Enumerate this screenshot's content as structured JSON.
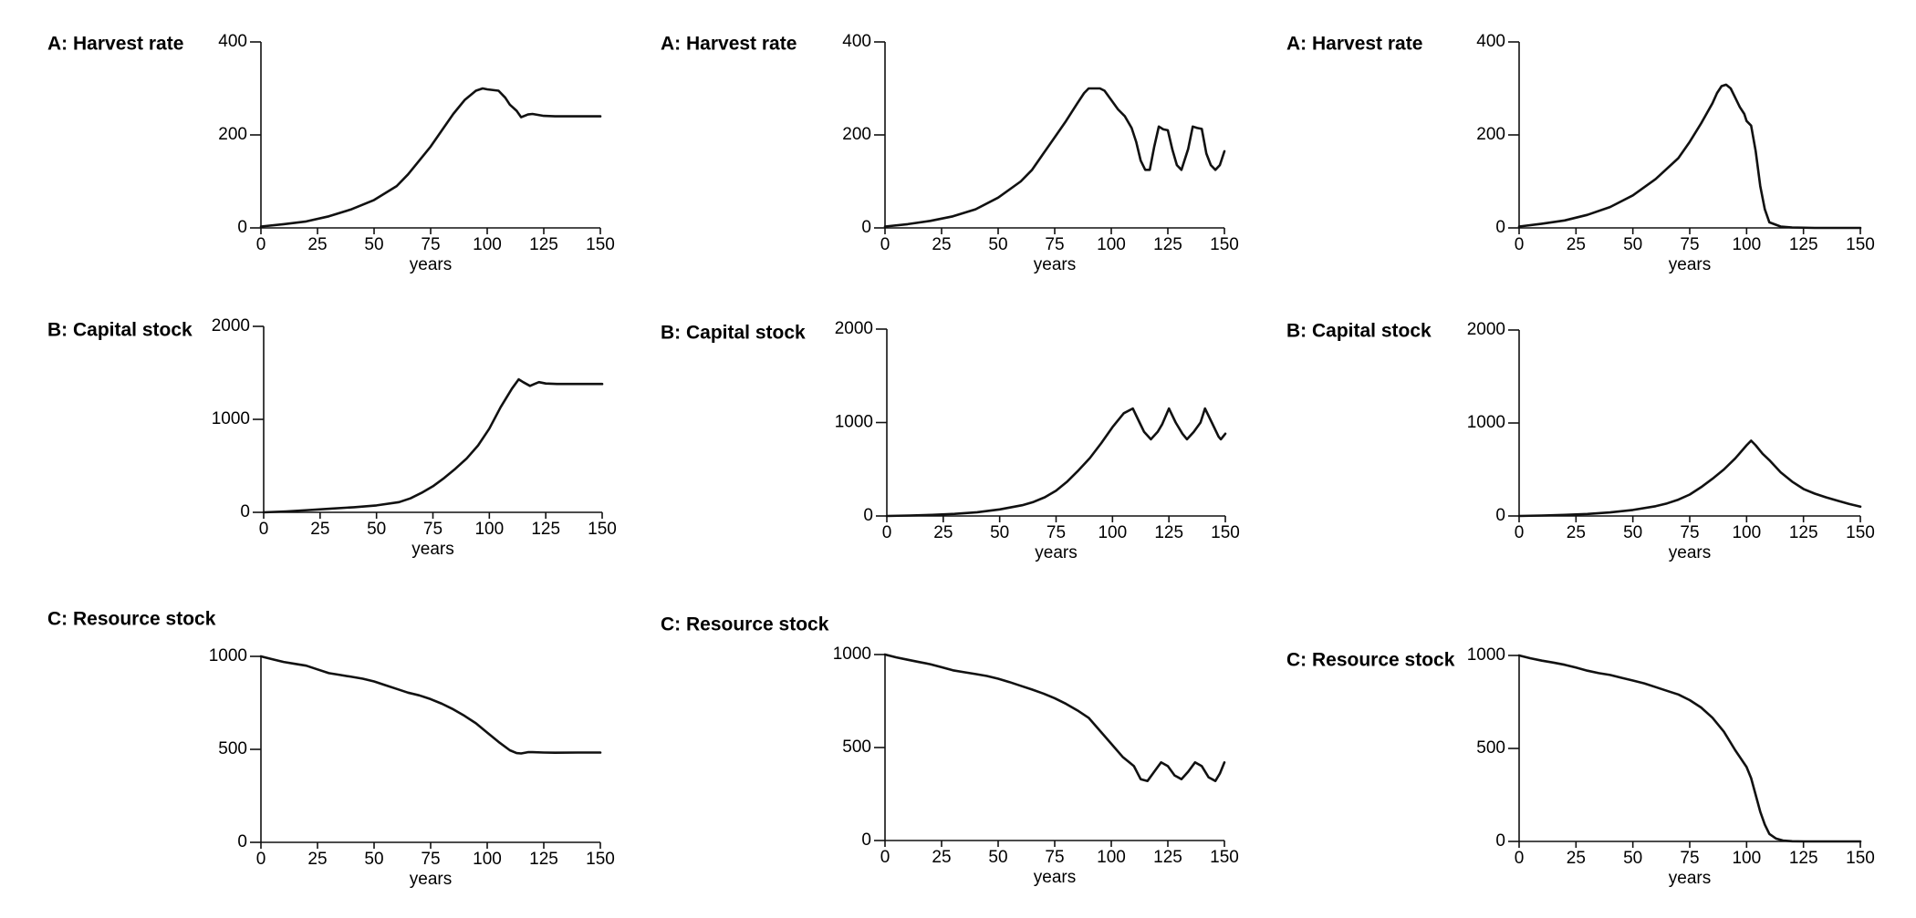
{
  "chart_data": [
    {
      "type": "line",
      "title": "A: Harvest rate",
      "xlabel": "years",
      "ylabel": "",
      "xlim": [
        0,
        150
      ],
      "ylim": [
        0,
        400
      ],
      "xticks": [
        0,
        25,
        50,
        75,
        100,
        125,
        150
      ],
      "yticks": [
        0,
        200,
        400
      ],
      "grid": false,
      "series": [
        {
          "x": [
            0,
            10,
            20,
            30,
            40,
            50,
            60,
            65,
            70,
            75,
            80,
            85,
            90,
            95,
            98,
            100,
            105,
            108,
            110,
            113,
            115,
            118,
            120,
            125,
            130,
            140,
            150
          ],
          "y": [
            3,
            8,
            14,
            25,
            40,
            60,
            90,
            115,
            145,
            175,
            210,
            245,
            275,
            295,
            300,
            298,
            295,
            280,
            265,
            252,
            238,
            244,
            245,
            241,
            240,
            240,
            240
          ]
        }
      ]
    },
    {
      "type": "line",
      "title": "A: Harvest rate",
      "xlabel": "years",
      "ylabel": "",
      "xlim": [
        0,
        150
      ],
      "ylim": [
        0,
        400
      ],
      "xticks": [
        0,
        25,
        50,
        75,
        100,
        125,
        150
      ],
      "yticks": [
        0,
        200,
        400
      ],
      "grid": false,
      "series": [
        {
          "x": [
            0,
            10,
            20,
            30,
            40,
            50,
            60,
            65,
            70,
            75,
            80,
            85,
            88,
            90,
            95,
            97,
            100,
            103,
            106,
            109,
            111,
            113,
            115,
            117,
            119,
            121,
            123,
            125,
            127,
            129,
            131,
            134,
            136,
            138,
            140,
            142,
            144,
            146,
            148,
            150
          ],
          "y": [
            3,
            8,
            15,
            25,
            40,
            65,
            100,
            125,
            160,
            195,
            230,
            268,
            290,
            300,
            300,
            295,
            275,
            255,
            240,
            215,
            185,
            145,
            125,
            125,
            175,
            218,
            212,
            210,
            168,
            135,
            125,
            170,
            218,
            215,
            213,
            160,
            135,
            125,
            135,
            165
          ]
        }
      ]
    },
    {
      "type": "line",
      "title": "A: Harvest rate",
      "xlabel": "years",
      "ylabel": "",
      "xlim": [
        0,
        150
      ],
      "ylim": [
        0,
        400
      ],
      "xticks": [
        0,
        25,
        50,
        75,
        100,
        125,
        150
      ],
      "yticks": [
        0,
        200,
        400
      ],
      "grid": false,
      "series": [
        {
          "x": [
            0,
            10,
            20,
            30,
            40,
            50,
            60,
            70,
            75,
            80,
            85,
            87,
            89,
            91,
            93,
            95,
            97,
            99,
            100,
            102,
            104,
            106,
            108,
            110,
            115,
            120,
            130,
            150
          ],
          "y": [
            3,
            9,
            16,
            28,
            45,
            70,
            105,
            150,
            185,
            225,
            268,
            290,
            305,
            308,
            300,
            280,
            260,
            245,
            230,
            220,
            165,
            90,
            40,
            12,
            3,
            1,
            0,
            0
          ]
        }
      ]
    },
    {
      "type": "line",
      "title": "B: Capital stock",
      "xlabel": "years",
      "ylabel": "",
      "xlim": [
        0,
        150
      ],
      "ylim": [
        0,
        2000
      ],
      "xticks": [
        0,
        25,
        50,
        75,
        100,
        125,
        150
      ],
      "yticks": [
        0,
        1000,
        2000
      ],
      "grid": false,
      "series": [
        {
          "x": [
            0,
            10,
            20,
            30,
            40,
            50,
            60,
            65,
            70,
            75,
            80,
            85,
            90,
            95,
            100,
            105,
            110,
            113,
            115,
            118,
            120,
            122,
            125,
            130,
            140,
            150
          ],
          "y": [
            0,
            10,
            25,
            40,
            55,
            75,
            110,
            150,
            210,
            280,
            370,
            470,
            580,
            720,
            900,
            1130,
            1330,
            1430,
            1400,
            1360,
            1380,
            1400,
            1385,
            1380,
            1380,
            1380
          ]
        }
      ]
    },
    {
      "type": "line",
      "title": "B: Capital stock",
      "xlabel": "years",
      "ylabel": "",
      "xlim": [
        0,
        150
      ],
      "ylim": [
        0,
        2000
      ],
      "xticks": [
        0,
        25,
        50,
        75,
        100,
        125,
        150
      ],
      "yticks": [
        0,
        1000,
        2000
      ],
      "grid": false,
      "series": [
        {
          "x": [
            0,
            10,
            20,
            30,
            40,
            50,
            60,
            65,
            70,
            75,
            80,
            85,
            90,
            95,
            100,
            105,
            109,
            112,
            114,
            117,
            120,
            122,
            125,
            128,
            131,
            133,
            136,
            139,
            141,
            144,
            147,
            148,
            150
          ],
          "y": [
            0,
            5,
            12,
            22,
            40,
            70,
            115,
            150,
            200,
            270,
            370,
            490,
            620,
            780,
            950,
            1100,
            1150,
            1000,
            900,
            820,
            900,
            980,
            1150,
            1000,
            880,
            820,
            900,
            1000,
            1150,
            1000,
            850,
            820,
            880
          ]
        }
      ]
    },
    {
      "type": "line",
      "title": "B: Capital stock",
      "xlabel": "years",
      "ylabel": "",
      "xlim": [
        0,
        150
      ],
      "ylim": [
        0,
        2000
      ],
      "xticks": [
        0,
        25,
        50,
        75,
        100,
        125,
        150
      ],
      "yticks": [
        0,
        1000,
        2000
      ],
      "grid": false,
      "series": [
        {
          "x": [
            0,
            10,
            20,
            30,
            40,
            50,
            60,
            65,
            70,
            75,
            80,
            85,
            90,
            95,
            100,
            102,
            104,
            107,
            110,
            115,
            120,
            125,
            130,
            135,
            140,
            145,
            150
          ],
          "y": [
            0,
            5,
            12,
            22,
            38,
            65,
            105,
            135,
            175,
            230,
            310,
            400,
            500,
            620,
            760,
            810,
            760,
            670,
            600,
            470,
            370,
            290,
            240,
            200,
            165,
            130,
            100
          ]
        }
      ]
    },
    {
      "type": "line",
      "title": "C: Resource stock",
      "xlabel": "years",
      "ylabel": "",
      "xlim": [
        0,
        150
      ],
      "ylim": [
        0,
        1000
      ],
      "xticks": [
        0,
        25,
        50,
        75,
        100,
        125,
        150
      ],
      "yticks": [
        0,
        500,
        1000
      ],
      "grid": false,
      "series": [
        {
          "x": [
            0,
            5,
            10,
            15,
            20,
            25,
            30,
            35,
            40,
            45,
            50,
            55,
            60,
            65,
            70,
            75,
            80,
            85,
            90,
            95,
            100,
            105,
            110,
            113,
            115,
            118,
            120,
            125,
            130,
            140,
            150
          ],
          "y": [
            1000,
            985,
            970,
            960,
            950,
            930,
            910,
            900,
            890,
            880,
            865,
            845,
            825,
            805,
            790,
            770,
            745,
            715,
            680,
            640,
            590,
            540,
            495,
            480,
            478,
            485,
            485,
            483,
            482,
            483,
            483
          ]
        }
      ]
    },
    {
      "type": "line",
      "title": "C: Resource stock",
      "xlabel": "years",
      "ylabel": "",
      "xlim": [
        0,
        150
      ],
      "ylim": [
        0,
        1000
      ],
      "xticks": [
        0,
        25,
        50,
        75,
        100,
        125,
        150
      ],
      "yticks": [
        0,
        500,
        1000
      ],
      "grid": false,
      "series": [
        {
          "x": [
            0,
            5,
            10,
            15,
            20,
            25,
            30,
            35,
            40,
            45,
            50,
            55,
            60,
            65,
            70,
            75,
            80,
            85,
            90,
            95,
            100,
            105,
            108,
            110,
            113,
            116,
            119,
            122,
            125,
            128,
            131,
            134,
            137,
            140,
            143,
            146,
            148,
            150
          ],
          "y": [
            1000,
            985,
            972,
            960,
            948,
            932,
            915,
            905,
            895,
            885,
            870,
            852,
            832,
            812,
            790,
            765,
            735,
            700,
            660,
            590,
            520,
            450,
            420,
            400,
            330,
            320,
            370,
            420,
            400,
            350,
            330,
            370,
            420,
            400,
            340,
            320,
            360,
            420
          ]
        }
      ]
    },
    {
      "type": "line",
      "title": "C: Resource stock",
      "xlabel": "years",
      "ylabel": "",
      "xlim": [
        0,
        150
      ],
      "ylim": [
        0,
        1000
      ],
      "xticks": [
        0,
        25,
        50,
        75,
        100,
        125,
        150
      ],
      "yticks": [
        0,
        500,
        1000
      ],
      "grid": false,
      "series": [
        {
          "x": [
            0,
            5,
            10,
            15,
            20,
            25,
            30,
            35,
            40,
            45,
            50,
            55,
            60,
            65,
            70,
            75,
            80,
            85,
            90,
            95,
            100,
            102,
            104,
            106,
            108,
            110,
            113,
            116,
            120,
            125,
            130,
            150
          ],
          "y": [
            1000,
            985,
            972,
            962,
            950,
            935,
            918,
            905,
            895,
            880,
            865,
            850,
            830,
            810,
            790,
            760,
            720,
            665,
            590,
            490,
            400,
            340,
            250,
            160,
            90,
            40,
            15,
            5,
            1,
            0,
            0,
            0
          ]
        }
      ]
    }
  ]
}
